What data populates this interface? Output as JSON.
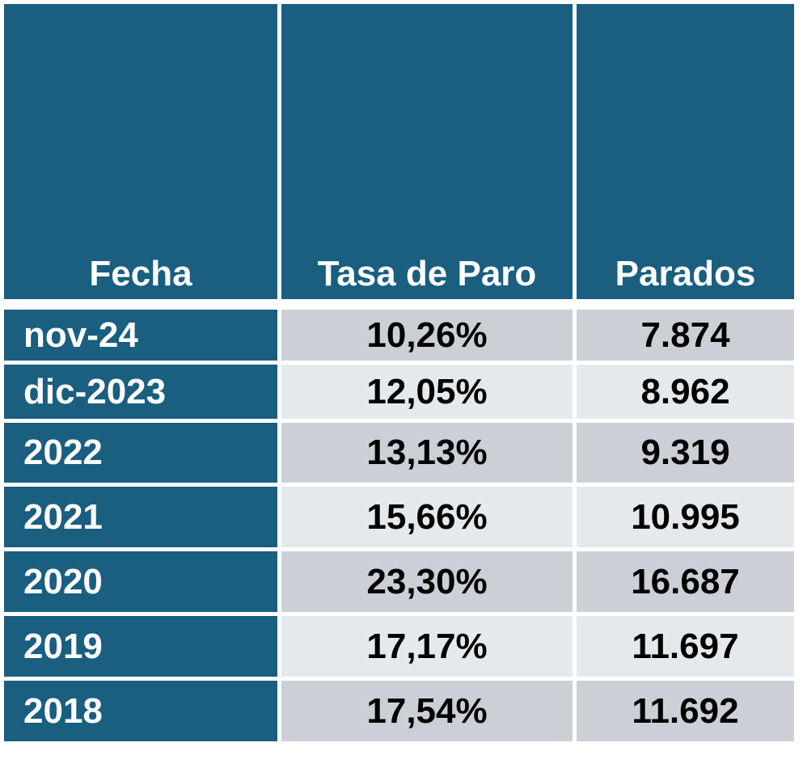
{
  "chart_data": {
    "type": "table",
    "columns": [
      "Fecha",
      "Tasa de Paro",
      "Parados"
    ],
    "rows": [
      [
        "nov-24",
        "10,26%",
        "7.874"
      ],
      [
        "dic-2023",
        "12,05%",
        "8.962"
      ],
      [
        "2022",
        "13,13%",
        "9.319"
      ],
      [
        "2021",
        "15,66%",
        "10.995"
      ],
      [
        "2020",
        "23,30%",
        "16.687"
      ],
      [
        "2019",
        "17,17%",
        "11.697"
      ],
      [
        "2018",
        "17,54%",
        "11.692"
      ]
    ]
  },
  "colors": {
    "header": "#1a5e80",
    "row_odd": "#ccd0d6",
    "row_even": "#e6e9ec"
  }
}
